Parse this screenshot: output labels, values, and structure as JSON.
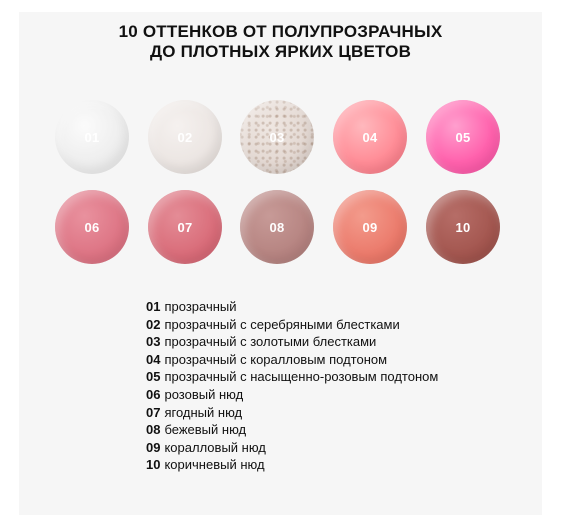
{
  "header": {
    "title_line1": "10 ОТТЕНКОВ ОТ ПОЛУПРОЗРАЧНЫХ",
    "title_line2": "ДО ПЛОТНЫХ ЯРКИХ ЦВЕТОВ"
  },
  "swatches": [
    {
      "number": "01",
      "color": "#eeeeee"
    },
    {
      "number": "02",
      "color": "#ece6e3"
    },
    {
      "number": "03",
      "color": "#e3d8d2"
    },
    {
      "number": "04",
      "color": "#ff8d97"
    },
    {
      "number": "05",
      "color": "#ff62ad"
    },
    {
      "number": "06",
      "color": "#dd7484"
    },
    {
      "number": "07",
      "color": "#d96c79"
    },
    {
      "number": "08",
      "color": "#b68481"
    },
    {
      "number": "09",
      "color": "#eb7a6b"
    },
    {
      "number": "10",
      "color": "#a3564f"
    }
  ],
  "legend": [
    {
      "number": "01",
      "text": "прозрачный"
    },
    {
      "number": "02",
      "text": "прозрачный с серебряными блестками"
    },
    {
      "number": "03",
      "text": "прозрачный с золотыми блестками"
    },
    {
      "number": "04",
      "text": "прозрачный с коралловым подтоном"
    },
    {
      "number": "05",
      "text": "прозрачный с насыщенно-розовым подтоном"
    },
    {
      "number": "06",
      "text": "розовый нюд"
    },
    {
      "number": "07",
      "text": "ягодный нюд"
    },
    {
      "number": "08",
      "text": "бежевый нюд"
    },
    {
      "number": "09",
      "text": "коралловый нюд"
    },
    {
      "number": "10",
      "text": "коричневый нюд"
    }
  ]
}
